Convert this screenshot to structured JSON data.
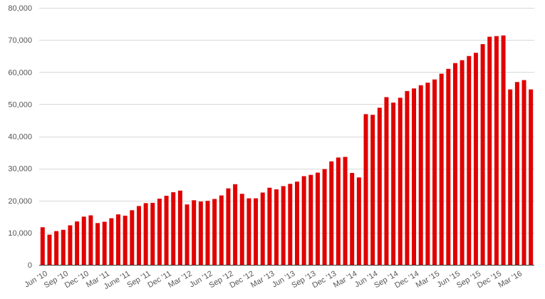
{
  "chart_data": {
    "type": "bar",
    "title": "",
    "xlabel": "",
    "ylabel": "",
    "ylim": [
      0,
      80000
    ],
    "y_ticks": [
      0,
      10000,
      20000,
      30000,
      40000,
      50000,
      60000,
      70000,
      80000
    ],
    "y_tick_labels": [
      "0",
      "10,000",
      "20,000",
      "30,000",
      "40,000",
      "50,000",
      "60,000",
      "70,000",
      "80,000"
    ],
    "grid": true,
    "legend": "none",
    "bar_color": "#e00000",
    "x_tick_labels": [
      {
        "index": 0,
        "label": "Jun '10"
      },
      {
        "index": 3,
        "label": "Sep '10"
      },
      {
        "index": 6,
        "label": "Dec '10"
      },
      {
        "index": 9,
        "label": "Mar '11"
      },
      {
        "index": 12,
        "label": "June '11"
      },
      {
        "index": 15,
        "label": "Sep '11"
      },
      {
        "index": 18,
        "label": "Dec '11"
      },
      {
        "index": 21,
        "label": "Mar '12"
      },
      {
        "index": 24,
        "label": "Jun '12"
      },
      {
        "index": 27,
        "label": "Sep '12"
      },
      {
        "index": 30,
        "label": "Dec '12"
      },
      {
        "index": 33,
        "label": "Mar '13"
      },
      {
        "index": 36,
        "label": "Jun '13"
      },
      {
        "index": 39,
        "label": "Sep '13"
      },
      {
        "index": 42,
        "label": "Dec '13"
      },
      {
        "index": 45,
        "label": "Mar '14"
      },
      {
        "index": 48,
        "label": "Jun '14"
      },
      {
        "index": 51,
        "label": "Sep '14"
      },
      {
        "index": 54,
        "label": "Dec '14"
      },
      {
        "index": 57,
        "label": "Mar '15"
      },
      {
        "index": 60,
        "label": "Jun '15"
      },
      {
        "index": 63,
        "label": "Sep '15"
      },
      {
        "index": 66,
        "label": "Dec '15"
      },
      {
        "index": 69,
        "label": "Mar '16"
      }
    ],
    "values": [
      11700,
      9400,
      10500,
      10900,
      12300,
      13500,
      15000,
      15400,
      13000,
      13400,
      14500,
      15700,
      15300,
      17000,
      18300,
      19200,
      19300,
      20600,
      21500,
      22600,
      23100,
      18800,
      20100,
      19700,
      19900,
      20500,
      21600,
      23800,
      25100,
      22100,
      20700,
      20700,
      22500,
      24000,
      23500,
      24500,
      25200,
      25900,
      27600,
      28000,
      28700,
      29800,
      32200,
      33400,
      33600,
      28600,
      27200,
      46900,
      46700,
      48900,
      52200,
      50500,
      52000,
      54100,
      54900,
      55900,
      56700,
      57700,
      59500,
      61000,
      62800,
      63700,
      65000,
      66000,
      68700,
      71000,
      71200,
      71400,
      54600,
      56900,
      57500,
      54600
    ]
  }
}
